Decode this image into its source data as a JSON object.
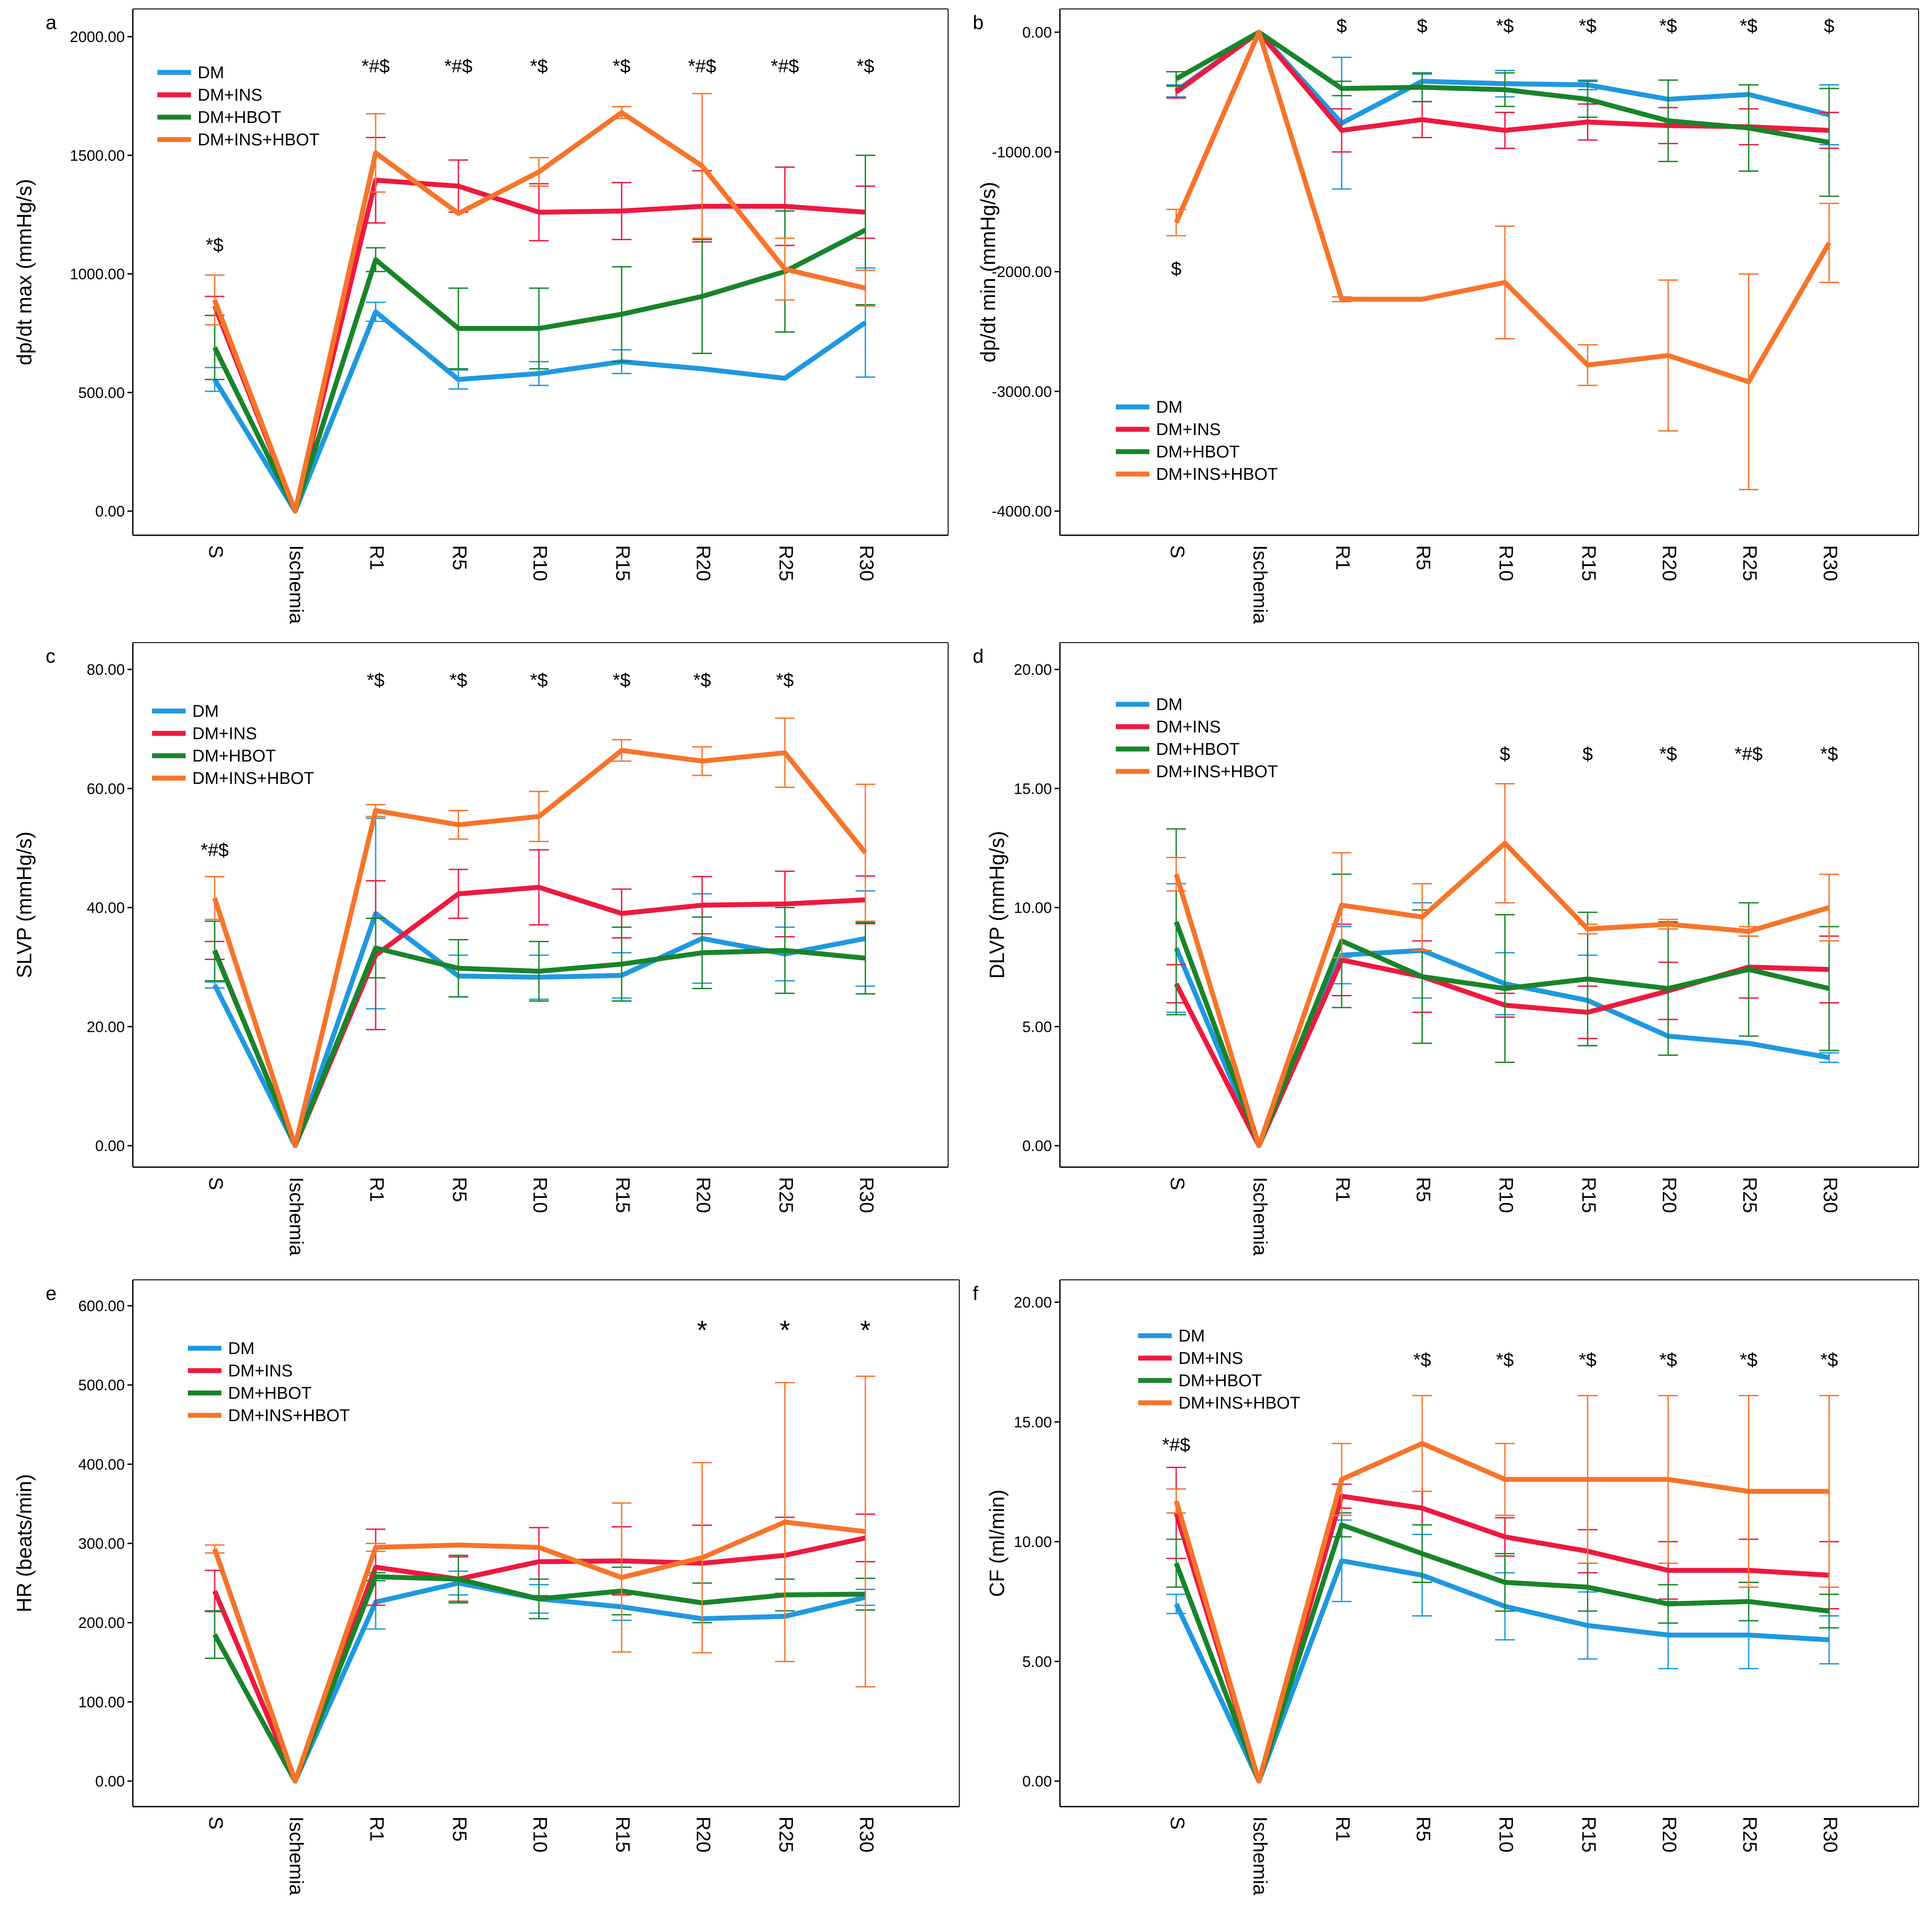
{
  "figure": {
    "categories": [
      "S",
      "Ischemia",
      "R1",
      "R5",
      "R10",
      "R15",
      "R20",
      "R25",
      "R30"
    ],
    "legend_labels": [
      "DM",
      "DM+INS",
      "DM+HBOT",
      "DM+INS+HBOT"
    ],
    "series_colors": [
      "#1f98e0",
      "#ee1940",
      "#19842a",
      "#f7742a"
    ]
  },
  "chart_data": [
    {
      "panel": "a",
      "type": "line",
      "ylabel": "dp/dt max (mmHg/s)",
      "ylim": [
        0,
        2000
      ],
      "yticks": [
        0,
        500,
        1000,
        1500,
        2000
      ],
      "tick_labels": [
        "0.00",
        "500.00",
        "1000.00",
        "1500.00",
        "2000.00"
      ],
      "legend_position": "top-left",
      "series": [
        {
          "name": "DM",
          "values": [
            555,
            0,
            840,
            555,
            580,
            630,
            600,
            560,
            795
          ],
          "errors": [
            50,
            0,
            40,
            40,
            50,
            50,
            0,
            0,
            230
          ]
        },
        {
          "name": "DM+INS",
          "values": [
            865,
            0,
            1395,
            1370,
            1260,
            1265,
            1285,
            1285,
            1260
          ],
          "errors": [
            40,
            0,
            180,
            110,
            120,
            120,
            150,
            165,
            110
          ]
        },
        {
          "name": "DM+HBOT",
          "values": [
            690,
            0,
            1060,
            770,
            770,
            830,
            905,
            1010,
            1185
          ],
          "errors": [
            135,
            0,
            50,
            170,
            170,
            200,
            240,
            255,
            315
          ]
        },
        {
          "name": "DM+INS+HBOT",
          "values": [
            890,
            0,
            1510,
            1255,
            1430,
            1680,
            1455,
            1020,
            940
          ],
          "errors": [
            105,
            0,
            165,
            0,
            60,
            25,
            305,
            130,
            75
          ]
        }
      ],
      "annotations": [
        {
          "category": "S",
          "text": "*$"
        },
        {
          "category": "R1",
          "text": "*#$"
        },
        {
          "category": "R5",
          "text": "*#$"
        },
        {
          "category": "R10",
          "text": "*$"
        },
        {
          "category": "R15",
          "text": "*$"
        },
        {
          "category": "R20",
          "text": "*#$"
        },
        {
          "category": "R25",
          "text": "*#$"
        },
        {
          "category": "R30",
          "text": "*$"
        }
      ]
    },
    {
      "panel": "b",
      "type": "line",
      "ylabel": "dp/dt min (mmHg/s)",
      "ylim": [
        -4000,
        0
      ],
      "yticks": [
        -4000,
        -3000,
        -2000,
        -1000,
        0
      ],
      "tick_labels": [
        "-4000.00",
        "-3000.00",
        "-2000.00",
        "-1000.00",
        "0.00"
      ],
      "legend_position": "bottom-left",
      "series": [
        {
          "name": "DM",
          "values": [
            -490,
            0,
            -760,
            -410,
            -430,
            -440,
            -560,
            -520,
            -690
          ],
          "errors": [
            50,
            0,
            550,
            60,
            110,
            40,
            0,
            0,
            250
          ]
        },
        {
          "name": "DM+INS",
          "values": [
            -500,
            0,
            -820,
            -730,
            -820,
            -750,
            -780,
            -790,
            -820
          ],
          "errors": [
            50,
            0,
            180,
            150,
            150,
            150,
            150,
            150,
            150
          ]
        },
        {
          "name": "DM+HBOT",
          "values": [
            -390,
            0,
            -470,
            -460,
            -480,
            -560,
            -740,
            -800,
            -920
          ],
          "errors": [
            60,
            0,
            60,
            120,
            140,
            150,
            340,
            360,
            450
          ]
        },
        {
          "name": "DM+INS+HBOT",
          "values": [
            -1590,
            0,
            -2230,
            -2230,
            -2090,
            -2780,
            -2700,
            -2920,
            -1760
          ],
          "errors": [
            110,
            0,
            20,
            0,
            470,
            170,
            630,
            900,
            330
          ]
        }
      ],
      "annotations": [
        {
          "category": "S",
          "text": "$"
        },
        {
          "category": "R1",
          "text": "$"
        },
        {
          "category": "R5",
          "text": "$"
        },
        {
          "category": "R10",
          "text": "*$"
        },
        {
          "category": "R15",
          "text": "*$"
        },
        {
          "category": "R20",
          "text": "*$"
        },
        {
          "category": "R25",
          "text": "*$"
        },
        {
          "category": "R30",
          "text": "$"
        }
      ]
    },
    {
      "panel": "c",
      "type": "line",
      "ylabel": "SLVP (mmHg/s)",
      "ylim": [
        0,
        80
      ],
      "yticks": [
        0,
        20,
        40,
        60,
        80
      ],
      "tick_labels": [
        "0.00",
        "20.00",
        "40.00",
        "60.00",
        "80.00"
      ],
      "legend_position": "top-left",
      "series": [
        {
          "name": "DM",
          "values": [
            27,
            0,
            39,
            28.5,
            28.3,
            28.6,
            34.8,
            32.2,
            34.8
          ],
          "errors": [
            0.5,
            0,
            16,
            3.5,
            3.7,
            3.8,
            7.5,
            4.5,
            8
          ]
        },
        {
          "name": "DM+INS",
          "values": [
            32.8,
            0,
            32,
            42.3,
            43.4,
            39,
            40.4,
            40.6,
            41.3
          ],
          "errors": [
            1.5,
            0,
            12.5,
            4.1,
            6.3,
            4.1,
            4.8,
            5.5,
            4
          ]
        },
        {
          "name": "DM+HBOT",
          "values": [
            32.7,
            0,
            33.2,
            29.8,
            29.3,
            30.5,
            32.4,
            32.8,
            31.5
          ],
          "errors": [
            5,
            0,
            5,
            4.8,
            5,
            6.2,
            6,
            7.2,
            6
          ]
        },
        {
          "name": "DM+INS+HBOT",
          "values": [
            41.6,
            0,
            56.3,
            53.9,
            55.3,
            66.4,
            64.6,
            66,
            49.2
          ],
          "errors": [
            3.6,
            0,
            1,
            2.4,
            4.2,
            1.8,
            2.4,
            5.8,
            11.5
          ]
        }
      ],
      "annotations": [
        {
          "category": "S",
          "text": "*#$"
        },
        {
          "category": "R1",
          "text": "*$"
        },
        {
          "category": "R5",
          "text": "*$"
        },
        {
          "category": "R10",
          "text": "*$"
        },
        {
          "category": "R15",
          "text": "*$"
        },
        {
          "category": "R20",
          "text": "*$"
        },
        {
          "category": "R25",
          "text": "*$"
        }
      ]
    },
    {
      "panel": "d",
      "type": "line",
      "ylabel": "DLVP (mmHg/s)",
      "ylim": [
        0,
        20
      ],
      "yticks": [
        0,
        5,
        10,
        15,
        20
      ],
      "tick_labels": [
        "0.00",
        "5.00",
        "10.00",
        "15.00",
        "20.00"
      ],
      "legend_position": "top-left",
      "series": [
        {
          "name": "DM",
          "values": [
            8.3,
            0,
            8,
            8.2,
            6.8,
            6.1,
            4.6,
            4.3,
            3.7
          ],
          "errors": [
            2.7,
            0,
            1.2,
            2,
            1.3,
            1.9,
            0,
            0,
            0.2
          ]
        },
        {
          "name": "DM+INS",
          "values": [
            6.8,
            0,
            7.8,
            7.1,
            5.9,
            5.6,
            6.5,
            7.5,
            7.4
          ],
          "errors": [
            0.8,
            0,
            1.5,
            1.5,
            0.5,
            1.1,
            1.2,
            1.3,
            1.4
          ]
        },
        {
          "name": "DM+HBOT",
          "values": [
            9.4,
            0,
            8.6,
            7.1,
            6.6,
            7,
            6.6,
            7.4,
            6.6
          ],
          "errors": [
            3.9,
            0,
            2.8,
            2.8,
            3.1,
            2.8,
            2.8,
            2.8,
            2.6
          ]
        },
        {
          "name": "DM+INS+HBOT",
          "values": [
            11.4,
            0,
            10.1,
            9.6,
            12.7,
            9.1,
            9.3,
            9,
            10
          ],
          "errors": [
            0.7,
            0,
            2.2,
            1.4,
            2.5,
            0.2,
            0.2,
            0.2,
            1.4
          ]
        }
      ],
      "annotations": [
        {
          "category": "R10",
          "text": "$"
        },
        {
          "category": "R15",
          "text": "$"
        },
        {
          "category": "R20",
          "text": "*$"
        },
        {
          "category": "R25",
          "text": "*#$"
        },
        {
          "category": "R30",
          "text": "*$"
        }
      ]
    },
    {
      "panel": "e",
      "type": "line",
      "ylabel": "HR (beats/min)",
      "ylim": [
        0,
        600
      ],
      "yticks": [
        0,
        100,
        200,
        300,
        400,
        500,
        600
      ],
      "tick_labels": [
        "0.00",
        "100.00",
        "200.00",
        "300.00",
        "400.00",
        "500.00",
        "600.00"
      ],
      "legend_position": "top-left",
      "series": [
        {
          "name": "DM",
          "values": [
            293,
            0,
            226,
            250,
            230,
            220,
            205,
            208,
            232
          ],
          "errors": [
            0,
            0,
            34,
            15,
            18,
            17,
            0,
            0,
            10
          ]
        },
        {
          "name": "DM+INS",
          "values": [
            240,
            0,
            270,
            255,
            277,
            278,
            275,
            285,
            307
          ],
          "errors": [
            26,
            0,
            48,
            28,
            43,
            43,
            48,
            48,
            30
          ]
        },
        {
          "name": "DM+HBOT",
          "values": [
            185,
            0,
            258,
            255,
            230,
            240,
            225,
            235,
            236
          ],
          "errors": [
            30,
            0,
            5,
            30,
            25,
            30,
            25,
            20,
            20
          ]
        },
        {
          "name": "DM+INS+HBOT",
          "values": [
            293,
            0,
            295,
            298,
            295,
            257,
            282,
            327,
            315
          ],
          "errors": [
            5,
            0,
            5,
            0,
            0,
            94,
            120,
            176,
            196
          ]
        }
      ],
      "annotations": [
        {
          "category": "R20",
          "text": "*"
        },
        {
          "category": "R25",
          "text": "*"
        },
        {
          "category": "R30",
          "text": "*"
        }
      ]
    },
    {
      "panel": "f",
      "type": "line",
      "ylabel": "CF (ml/min)",
      "ylim": [
        0,
        20
      ],
      "yticks": [
        0,
        5,
        10,
        15,
        20
      ],
      "tick_labels": [
        "0.00",
        "5.00",
        "10.00",
        "15.00",
        "20.00"
      ],
      "legend_position": "top-left",
      "series": [
        {
          "name": "DM",
          "values": [
            7.4,
            0,
            9.2,
            8.6,
            7.3,
            6.5,
            6.1,
            6.1,
            5.9
          ],
          "errors": [
            0.4,
            0,
            1.7,
            1.7,
            1.4,
            1.4,
            1.4,
            1.4,
            1
          ]
        },
        {
          "name": "DM+INS",
          "values": [
            11.2,
            0,
            11.9,
            11.4,
            10.2,
            9.6,
            8.8,
            8.8,
            8.6
          ],
          "errors": [
            1.9,
            0,
            0.5,
            0.7,
            0.8,
            0.9,
            1.2,
            1.3,
            1.4
          ]
        },
        {
          "name": "DM+HBOT",
          "values": [
            9.1,
            0,
            10.7,
            9.5,
            8.3,
            8.1,
            7.4,
            7.5,
            7.1
          ],
          "errors": [
            1,
            0,
            0.5,
            1.2,
            1.2,
            1,
            0.8,
            0.8,
            0.7
          ]
        },
        {
          "name": "DM+INS+HBOT",
          "values": [
            11.7,
            0,
            12.6,
            14.1,
            12.6,
            12.6,
            12.6,
            12.1,
            12.1
          ],
          "errors": [
            0.5,
            0,
            1.5,
            2,
            1.5,
            3.5,
            3.5,
            4,
            4
          ]
        }
      ],
      "annotations": [
        {
          "category": "S",
          "text": "*#$"
        },
        {
          "category": "R5",
          "text": "*$"
        },
        {
          "category": "R10",
          "text": "*$"
        },
        {
          "category": "R15",
          "text": "*$"
        },
        {
          "category": "R20",
          "text": "*$"
        },
        {
          "category": "R25",
          "text": "*$"
        },
        {
          "category": "R30",
          "text": "*$"
        }
      ]
    }
  ]
}
